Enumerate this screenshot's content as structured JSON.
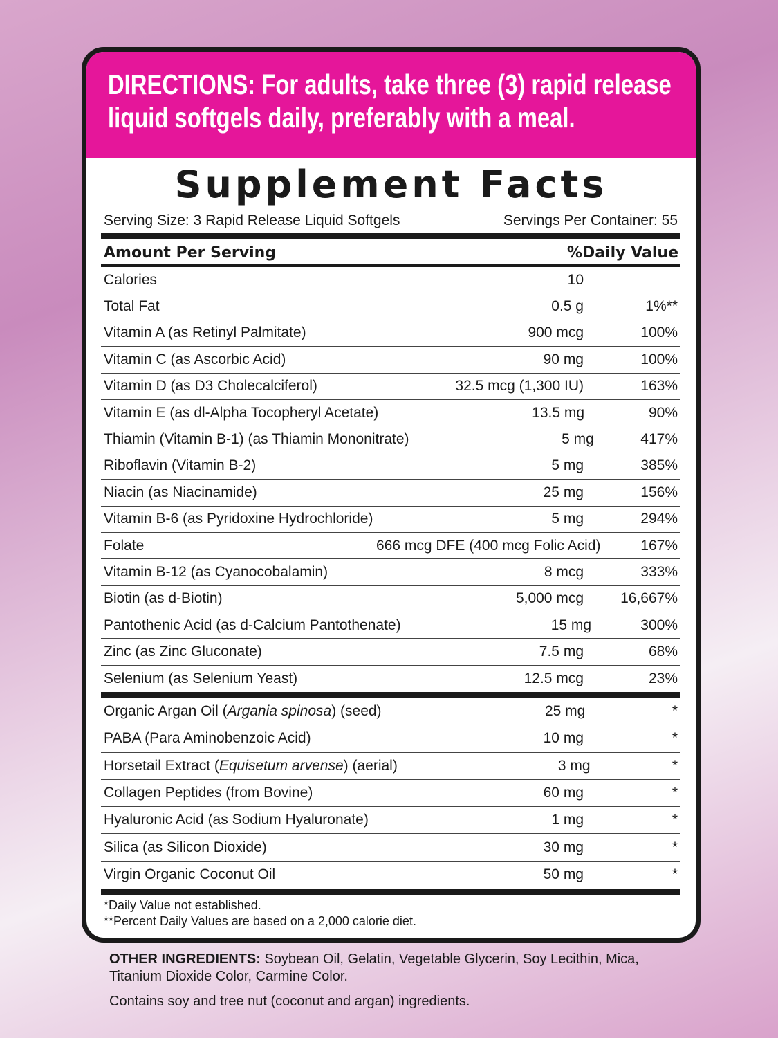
{
  "directions": {
    "line1": "DIRECTIONS: For adults, take three (3) rapid release",
    "line2": "liquid softgels daily, preferably with a meal."
  },
  "title": "Supplement Facts",
  "serving_size": "Serving Size: 3 Rapid Release Liquid Softgels",
  "servings_per_container": "Servings Per Container: 55",
  "header": {
    "amount": "Amount Per Serving",
    "dv": "%Daily Value"
  },
  "nutrients": [
    {
      "name": "Calories",
      "amount": "10",
      "dv": ""
    },
    {
      "name": "Total Fat",
      "amount": "0.5 g",
      "dv": "1%**"
    },
    {
      "name": "Vitamin A (as Retinyl Palmitate)",
      "amount": "900 mcg",
      "dv": "100%"
    },
    {
      "name": "Vitamin C (as Ascorbic Acid)",
      "amount": "90 mg",
      "dv": "100%"
    },
    {
      "name": "Vitamin D (as D3 Cholecalciferol)",
      "amount": "32.5 mcg (1,300 IU)",
      "dv": "163%"
    },
    {
      "name": "Vitamin E (as dl-Alpha Tocopheryl Acetate)",
      "amount": "13.5 mg",
      "dv": "90%"
    },
    {
      "name": "Thiamin (Vitamin B-1) (as Thiamin Mononitrate)",
      "amount": "5 mg",
      "dv": "417%"
    },
    {
      "name": "Riboflavin (Vitamin B-2)",
      "amount": "5 mg",
      "dv": "385%"
    },
    {
      "name": "Niacin (as Niacinamide)",
      "amount": "25 mg",
      "dv": "156%"
    },
    {
      "name": "Vitamin B-6 (as Pyridoxine Hydrochloride)",
      "amount": "5 mg",
      "dv": "294%"
    },
    {
      "name": "Folate",
      "amount": "666 mcg DFE (400 mcg Folic Acid)",
      "dv": "167%"
    },
    {
      "name": "Vitamin B-12 (as Cyanocobalamin)",
      "amount": "8 mcg",
      "dv": "333%"
    },
    {
      "name": "Biotin (as d-Biotin)",
      "amount": "5,000 mcg",
      "dv": "16,667%"
    },
    {
      "name": "Pantothenic Acid (as d-Calcium Pantothenate)",
      "amount": "15 mg",
      "dv": "300%"
    },
    {
      "name": "Zinc (as Zinc Gluconate)",
      "amount": "7.5 mg",
      "dv": "68%"
    },
    {
      "name": "Selenium (as Selenium Yeast)",
      "amount": "12.5 mcg",
      "dv": "23%"
    }
  ],
  "others": [
    {
      "name": "Organic Argan Oil (",
      "italic": "Argania spinosa",
      "suffix": ") (seed)",
      "amount": "25 mg",
      "dv": "*"
    },
    {
      "name": "PABA (Para Aminobenzoic Acid)",
      "italic": "",
      "suffix": "",
      "amount": "10 mg",
      "dv": "*"
    },
    {
      "name": "Horsetail Extract (",
      "italic": "Equisetum arvense",
      "suffix": ") (aerial)",
      "amount": "3 mg",
      "dv": "*"
    },
    {
      "name": "Collagen Peptides (from Bovine)",
      "italic": "",
      "suffix": "",
      "amount": "60 mg",
      "dv": "*"
    },
    {
      "name": "Hyaluronic Acid (as Sodium Hyaluronate)",
      "italic": "",
      "suffix": "",
      "amount": "1 mg",
      "dv": "*"
    },
    {
      "name": "Silica (as Silicon Dioxide)",
      "italic": "",
      "suffix": "",
      "amount": "30 mg",
      "dv": "*"
    },
    {
      "name": "Virgin Organic Coconut Oil",
      "italic": "",
      "suffix": "",
      "amount": "50 mg",
      "dv": "*"
    }
  ],
  "footnotes": [
    "*Daily Value not established.",
    "**Percent Daily Values are based on a 2,000 calorie diet."
  ],
  "other_ingredients": {
    "label": "OTHER INGREDIENTS:",
    "text": " Soybean Oil, Gelatin, Vegetable Glycerin, Soy Lecithin, Mica, Titanium Dioxide Color, Carmine Color."
  },
  "allergen": "Contains soy and tree nut (coconut and argan) ingredients.",
  "colors": {
    "accent": "#e5169a",
    "text": "#1a1a1a"
  }
}
